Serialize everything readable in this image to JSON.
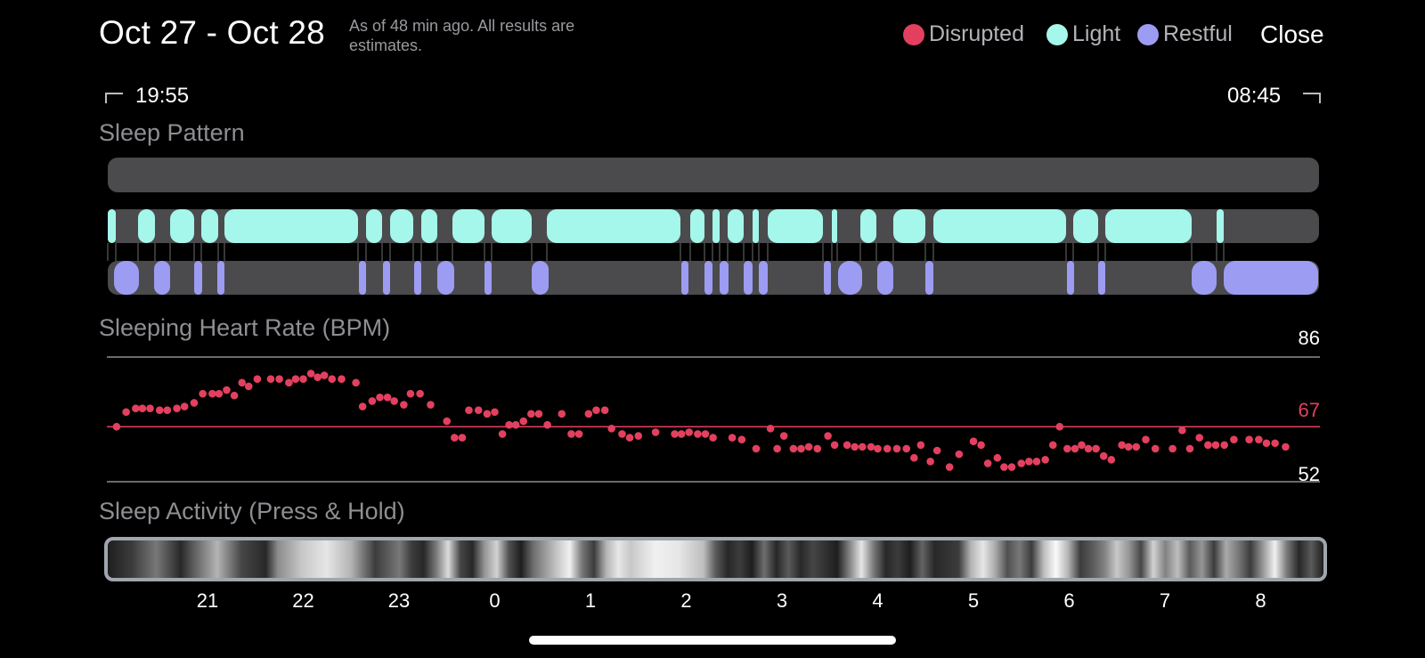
{
  "header": {
    "title": "Oct 27 - Oct 28",
    "subtitle": "As of 48 min ago. All results are estimates.",
    "close_label": "Close"
  },
  "legend": [
    {
      "label": "Disrupted",
      "color": "#E3405F"
    },
    {
      "label": "Light",
      "color": "#A4F7EA"
    },
    {
      "label": "Restful",
      "color": "#9C9CF2"
    }
  ],
  "timeline": {
    "start": "19:55",
    "end": "08:45"
  },
  "sections": {
    "sleep_pattern": "Sleep Pattern",
    "heart_rate": "Sleeping Heart Rate (BPM)",
    "activity": "Sleep Activity (Press & Hold)"
  },
  "heart_rate": {
    "max": "86",
    "avg": "67",
    "min": "52"
  },
  "colors": {
    "disrupted": "#E3405F",
    "light": "#A4F7EA",
    "restful": "#9C9CF2",
    "track": "#4B4B4D"
  },
  "chart_data": {
    "type": "scatter",
    "ylim": [
      52,
      86
    ],
    "y_reference": [
      86,
      67,
      52
    ],
    "xticks": [
      "21",
      "22",
      "23",
      "0",
      "1",
      "2",
      "3",
      "4",
      "5",
      "6",
      "7",
      "8"
    ],
    "series": [
      {
        "values": [
          [
            20.05,
            67
          ],
          [
            20.15,
            71
          ],
          [
            20.25,
            72
          ],
          [
            20.32,
            72
          ],
          [
            20.4,
            72
          ],
          [
            20.5,
            71.5
          ],
          [
            20.58,
            71.5
          ],
          [
            20.68,
            72
          ],
          [
            20.76,
            72.5
          ],
          [
            20.86,
            73.5
          ],
          [
            20.95,
            76
          ],
          [
            21.05,
            76
          ],
          [
            21.12,
            76
          ],
          [
            21.2,
            77
          ],
          [
            21.28,
            75.5
          ],
          [
            21.36,
            79
          ],
          [
            21.43,
            78
          ],
          [
            21.52,
            80
          ],
          [
            21.66,
            80
          ],
          [
            21.75,
            80
          ],
          [
            21.85,
            79
          ],
          [
            21.92,
            80
          ],
          [
            22.0,
            80
          ],
          [
            22.08,
            81.5
          ],
          [
            22.15,
            80.5
          ],
          [
            22.22,
            81
          ],
          [
            22.3,
            80
          ],
          [
            22.4,
            80
          ],
          [
            22.55,
            79
          ],
          [
            22.62,
            72.5
          ],
          [
            22.72,
            74
          ],
          [
            22.8,
            75
          ],
          [
            22.88,
            75
          ],
          [
            22.95,
            74
          ],
          [
            23.05,
            73
          ],
          [
            23.12,
            76
          ],
          [
            23.22,
            76
          ],
          [
            23.33,
            73
          ],
          [
            23.5,
            68.5
          ],
          [
            23.58,
            64
          ],
          [
            23.66,
            64
          ],
          [
            23.73,
            71.5
          ],
          [
            23.83,
            71.5
          ],
          [
            23.92,
            70.5
          ],
          [
            24.0,
            71
          ],
          [
            24.08,
            65
          ],
          [
            24.15,
            67.5
          ],
          [
            24.22,
            67.5
          ],
          [
            24.3,
            68.5
          ],
          [
            24.38,
            70.5
          ],
          [
            24.46,
            70.5
          ],
          [
            24.55,
            67.5
          ],
          [
            24.7,
            70.5
          ],
          [
            24.8,
            65
          ],
          [
            24.88,
            65
          ],
          [
            24.98,
            70.5
          ],
          [
            25.06,
            71.5
          ],
          [
            25.15,
            71.5
          ],
          [
            25.22,
            66.5
          ],
          [
            25.33,
            65
          ],
          [
            25.41,
            64
          ],
          [
            25.5,
            64.5
          ],
          [
            25.68,
            65.5
          ],
          [
            25.88,
            65
          ],
          [
            25.95,
            65
          ],
          [
            26.03,
            65.5
          ],
          [
            26.12,
            65
          ],
          [
            26.2,
            65
          ],
          [
            26.28,
            64
          ],
          [
            26.48,
            64
          ],
          [
            26.58,
            63.5
          ],
          [
            26.73,
            61
          ],
          [
            26.88,
            66.5
          ],
          [
            26.95,
            61
          ],
          [
            27.02,
            64.5
          ],
          [
            27.12,
            61
          ],
          [
            27.2,
            61
          ],
          [
            27.28,
            61.5
          ],
          [
            27.37,
            61
          ],
          [
            27.48,
            64.5
          ],
          [
            27.55,
            62
          ],
          [
            27.68,
            62
          ],
          [
            27.76,
            61.5
          ],
          [
            27.84,
            61.5
          ],
          [
            27.93,
            61.5
          ],
          [
            28.0,
            61
          ],
          [
            28.1,
            61
          ],
          [
            28.2,
            61
          ],
          [
            28.3,
            61
          ],
          [
            28.38,
            58.5
          ],
          [
            28.45,
            62
          ],
          [
            28.55,
            57.5
          ],
          [
            28.62,
            60.5
          ],
          [
            28.75,
            56
          ],
          [
            28.85,
            59.5
          ],
          [
            29.0,
            63
          ],
          [
            29.08,
            62
          ],
          [
            29.15,
            57
          ],
          [
            29.25,
            58.5
          ],
          [
            29.32,
            56
          ],
          [
            29.4,
            56
          ],
          [
            29.5,
            57
          ],
          [
            29.58,
            57.5
          ],
          [
            29.66,
            57.5
          ],
          [
            29.75,
            58
          ],
          [
            29.83,
            62
          ],
          [
            29.9,
            67
          ],
          [
            29.98,
            61
          ],
          [
            30.06,
            61
          ],
          [
            30.13,
            62
          ],
          [
            30.2,
            61
          ],
          [
            30.28,
            61
          ],
          [
            30.36,
            59
          ],
          [
            30.44,
            58
          ],
          [
            30.55,
            62
          ],
          [
            30.62,
            61.5
          ],
          [
            30.7,
            61.5
          ],
          [
            30.8,
            63.5
          ],
          [
            30.9,
            61
          ],
          [
            31.08,
            61
          ],
          [
            31.18,
            66
          ],
          [
            31.26,
            61
          ],
          [
            31.36,
            64
          ],
          [
            31.45,
            62
          ],
          [
            31.53,
            62
          ],
          [
            31.62,
            62
          ],
          [
            31.72,
            63.5
          ],
          [
            31.88,
            63.5
          ],
          [
            31.98,
            63.5
          ],
          [
            32.06,
            62.5
          ],
          [
            32.15,
            62.5
          ],
          [
            32.26,
            61.5
          ]
        ]
      }
    ]
  }
}
